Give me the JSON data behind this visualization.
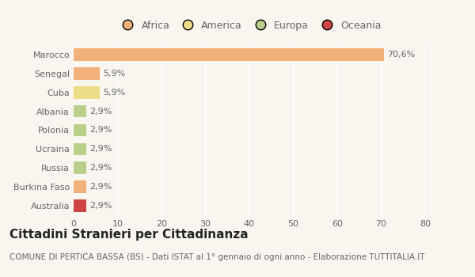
{
  "categories": [
    "Marocco",
    "Senegal",
    "Cuba",
    "Albania",
    "Polonia",
    "Ucraina",
    "Russia",
    "Burkina Faso",
    "Australia"
  ],
  "values": [
    70.6,
    5.9,
    5.9,
    2.9,
    2.9,
    2.9,
    2.9,
    2.9,
    2.9
  ],
  "labels": [
    "70,6%",
    "5,9%",
    "5,9%",
    "2,9%",
    "2,9%",
    "2,9%",
    "2,9%",
    "2,9%",
    "2,9%"
  ],
  "bar_colors": [
    "#f2b07a",
    "#f2b07a",
    "#eedd88",
    "#b8d08a",
    "#b8d08a",
    "#b8d08a",
    "#b8d08a",
    "#f2b07a",
    "#cc4444"
  ],
  "legend_labels": [
    "Africa",
    "America",
    "Europa",
    "Oceania"
  ],
  "legend_colors": [
    "#f2b07a",
    "#eedd88",
    "#b8d08a",
    "#cc4444"
  ],
  "xlim": [
    0,
    80
  ],
  "xticks": [
    0,
    10,
    20,
    30,
    40,
    50,
    60,
    70,
    80
  ],
  "title": "Cittadini Stranieri per Cittadinanza",
  "subtitle": "COMUNE DI PERTICA BASSA (BS) - Dati ISTAT al 1° gennaio di ogni anno - Elaborazione TUTTITALIA.IT",
  "bg_color": "#f9f6f0",
  "grid_color": "#ffffff",
  "bar_height": 0.65,
  "title_fontsize": 11,
  "subtitle_fontsize": 7.5,
  "tick_fontsize": 8,
  "label_fontsize": 8,
  "legend_fontsize": 9
}
